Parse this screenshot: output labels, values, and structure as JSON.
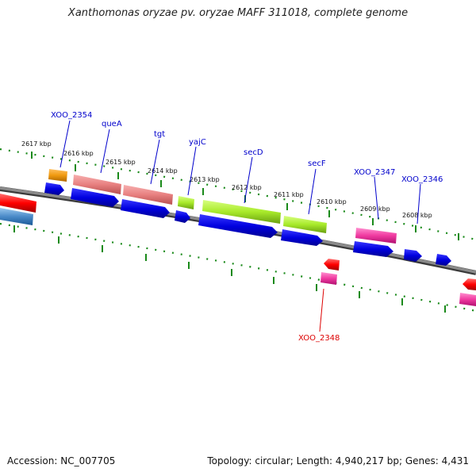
{
  "title": "Xanthomonas oryzae pv. oryzae MAFF 311018, complete genome",
  "accession_text": "Accession: NC_007705",
  "topology_text": "Topology: circular; Length: 4,940,217 bp; Genes: 4,431",
  "colors": {
    "backbone": "#7a7a7a",
    "tick": "#1a8a1a",
    "gene_label": "#0000cc",
    "gene_label_minus": "#dd0000",
    "cds": "#0000e0"
  },
  "kbp_labels": [
    "2617 kbp",
    "2616 kbp",
    "2615 kbp",
    "2614 kbp",
    "2613 kbp",
    "2612 kbp",
    "2611 kbp",
    "2610 kbp",
    "2609 kbp",
    "2608 kbp"
  ],
  "gene_labels_plus": [
    "XOO_2354",
    "queA",
    "tgt",
    "yajC",
    "secD",
    "secF",
    "XOO_2347",
    "XOO_2346"
  ],
  "gene_labels_minus": [
    "XOO_2348"
  ]
}
